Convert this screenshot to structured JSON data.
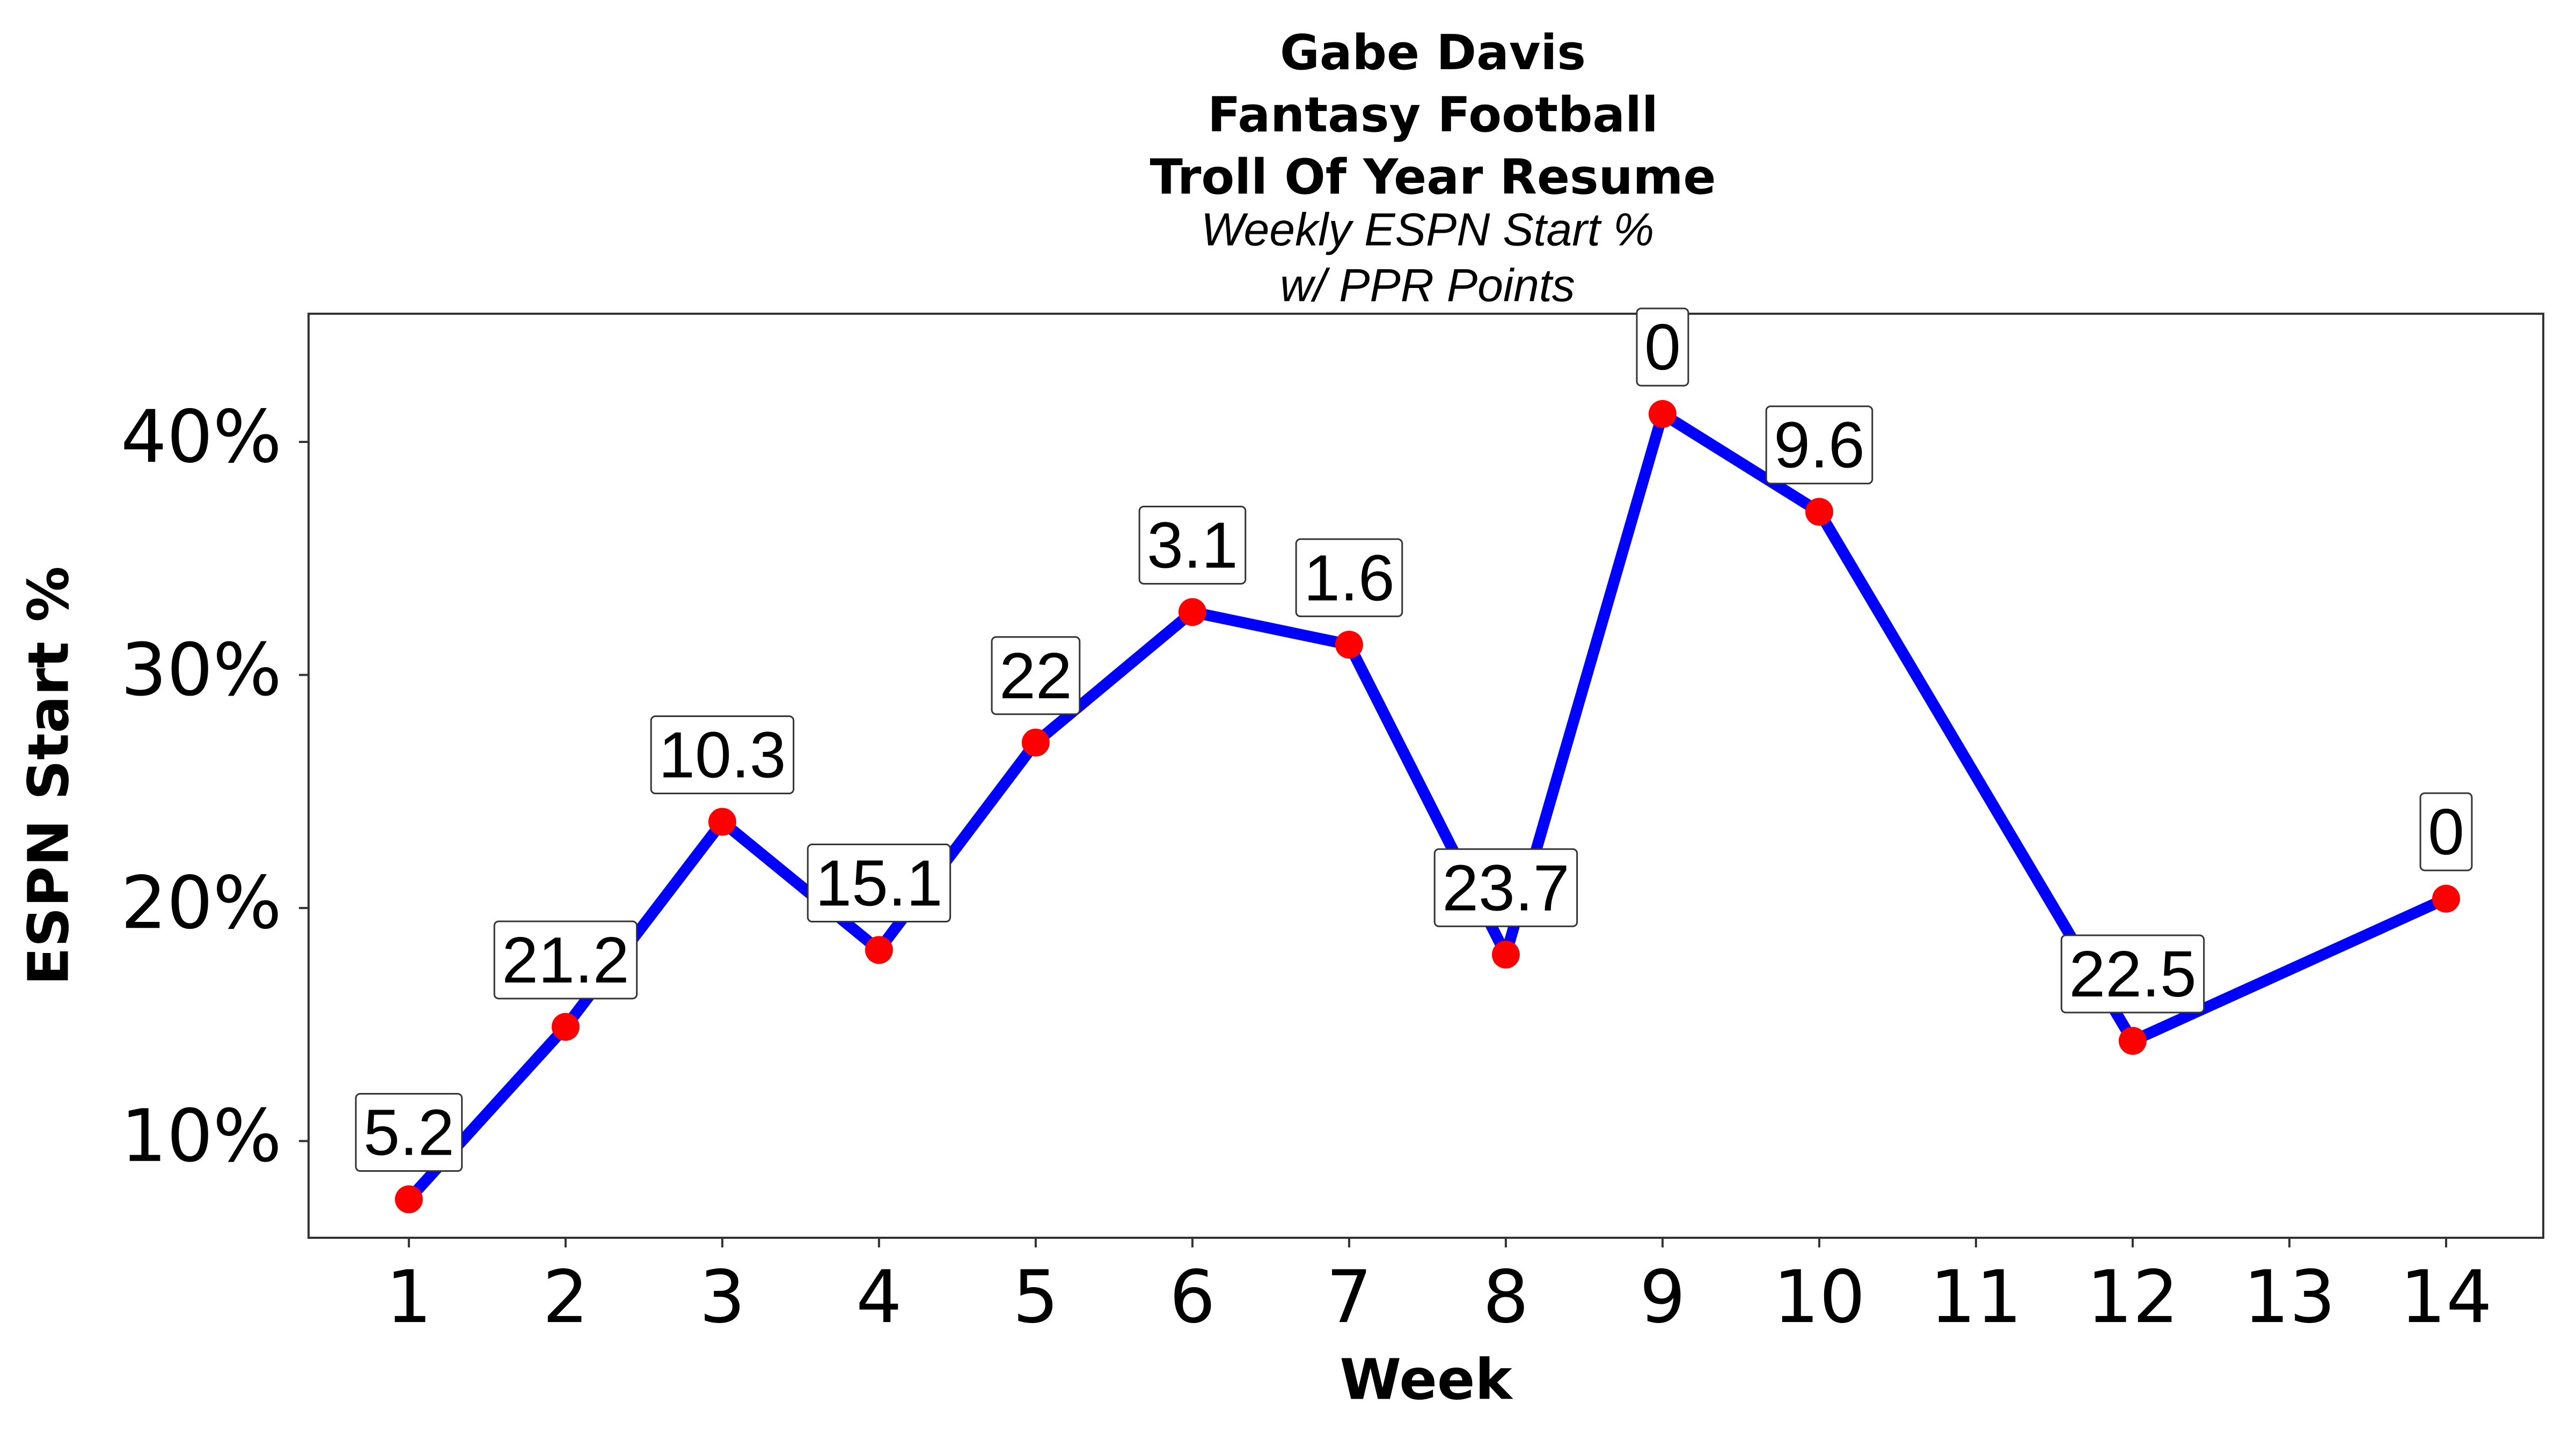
{
  "chart_data": {
    "type": "line",
    "title": [
      "Gabe Davis",
      "Fantasy Football",
      "Troll Of Year Resume"
    ],
    "subtitle": [
      "Weekly ESPN Start %",
      "w/ PPR Points"
    ],
    "x_label": "Week",
    "y_label": "ESPN Start %",
    "x": [
      1,
      2,
      3,
      4,
      5,
      6,
      7,
      8,
      9,
      10,
      12,
      14
    ],
    "series": [
      {
        "name": "ESPN Start %",
        "color": "#0000ff",
        "marker_color": "#ff0000",
        "values": [
          7.5,
          14.9,
          23.7,
          18.2,
          27.1,
          32.7,
          31.3,
          18.0,
          41.2,
          37.0,
          14.3,
          20.4
        ],
        "ppr_points": [
          5.2,
          21.2,
          10.3,
          15.1,
          22,
          3.1,
          1.6,
          23.7,
          0,
          9.6,
          22.5,
          0
        ]
      }
    ],
    "xlim": [
      0.36,
      14.62
    ],
    "xticks": [
      1,
      2,
      3,
      4,
      5,
      6,
      7,
      8,
      9,
      10,
      11,
      12,
      13,
      14
    ],
    "ylim": [
      5.85,
      45.5
    ],
    "yticks": [
      {
        "value": 10,
        "label": "10%"
      },
      {
        "value": 20,
        "label": "20%"
      },
      {
        "value": 30,
        "label": "30%"
      },
      {
        "value": 40,
        "label": "40%"
      }
    ],
    "grid": false
  }
}
